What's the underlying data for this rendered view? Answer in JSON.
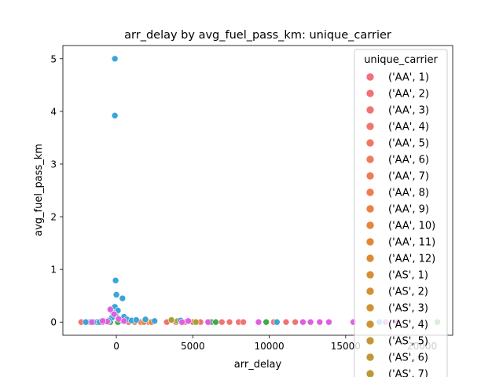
{
  "chart_data": {
    "type": "scatter",
    "title": "arr_delay by avg_fuel_pass_km: unique_carrier",
    "xlabel": "arr_delay",
    "ylabel": "avg_fuel_pass_km",
    "xlim": [
      -3500,
      22000
    ],
    "ylim": [
      -0.25,
      5.25
    ],
    "x_ticks": [
      0,
      5000,
      10000,
      15000,
      20000
    ],
    "x_tick_labels": [
      "0",
      "5000",
      "10000",
      "15000",
      "20000"
    ],
    "y_ticks": [
      0,
      1,
      2,
      3,
      4,
      5
    ],
    "y_tick_labels": [
      "0",
      "1",
      "2",
      "3",
      "4",
      "5"
    ],
    "grid": false,
    "legend": {
      "title": "unique_carrier",
      "placement": "top-right",
      "entries": [
        {
          "label": "('AA', 1)",
          "color": "#f0707c"
        },
        {
          "label": "('AA', 2)",
          "color": "#f07277"
        },
        {
          "label": "('AA', 3)",
          "color": "#f07472"
        },
        {
          "label": "('AA', 4)",
          "color": "#f0766c"
        },
        {
          "label": "('AA', 5)",
          "color": "#f07866"
        },
        {
          "label": "('AA', 6)",
          "color": "#f07a60"
        },
        {
          "label": "('AA', 7)",
          "color": "#ef7c58"
        },
        {
          "label": "('AA', 8)",
          "color": "#ee7e4e"
        },
        {
          "label": "('AA', 9)",
          "color": "#ec8140"
        },
        {
          "label": "('AA', 10)",
          "color": "#e9843a"
        },
        {
          "label": "('AA', 11)",
          "color": "#e38735"
        },
        {
          "label": "('AA', 12)",
          "color": "#de8a32"
        },
        {
          "label": "('AS', 1)",
          "color": "#d98d32"
        },
        {
          "label": "('AS', 2)",
          "color": "#d49033"
        },
        {
          "label": "('AS', 3)",
          "color": "#cf9233"
        },
        {
          "label": "('AS', 4)",
          "color": "#ca9433"
        },
        {
          "label": "('AS', 5)",
          "color": "#c59634"
        },
        {
          "label": "('AS', 6)",
          "color": "#c09835"
        },
        {
          "label": "('AS', 7)",
          "color": "#bb9a36"
        }
      ]
    },
    "series": [
      {
        "color": "#f07472",
        "points": [
          [
            -2300,
            0
          ],
          [
            -1800,
            0
          ],
          [
            -1200,
            0
          ],
          [
            -900,
            0
          ],
          [
            -500,
            0
          ],
          [
            300,
            0.03
          ],
          [
            800,
            0
          ],
          [
            1600,
            0
          ],
          [
            2100,
            0
          ],
          [
            3300,
            0
          ],
          [
            3900,
            0
          ],
          [
            4500,
            0
          ],
          [
            5000,
            0
          ],
          [
            5500,
            0
          ],
          [
            6900,
            0
          ],
          [
            7400,
            0
          ],
          [
            8000,
            0
          ],
          [
            8300,
            0
          ],
          [
            10300,
            0
          ],
          [
            11100,
            0
          ],
          [
            11700,
            0
          ]
        ]
      },
      {
        "color": "#de8a32",
        "points": [
          [
            1200,
            0
          ],
          [
            1800,
            0
          ],
          [
            2300,
            0
          ]
        ]
      },
      {
        "color": "#a9a035",
        "points": [
          [
            3600,
            0.04
          ],
          [
            4000,
            0.02
          ],
          [
            5200,
            0
          ]
        ]
      },
      {
        "color": "#3fab4d",
        "points": [
          [
            -1700,
            0
          ],
          [
            -1300,
            0
          ],
          [
            -400,
            0
          ],
          [
            100,
            0
          ],
          [
            6200,
            0
          ],
          [
            6500,
            0
          ],
          [
            9800,
            0
          ],
          [
            21000,
            0
          ]
        ]
      },
      {
        "color": "#3ba4d9",
        "points": [
          [
            -100,
            5.0
          ],
          [
            -100,
            3.92
          ],
          [
            -50,
            0.79
          ],
          [
            0,
            0.52
          ],
          [
            400,
            0.45
          ],
          [
            -100,
            0.29
          ],
          [
            100,
            0.22
          ],
          [
            -200,
            0.17
          ],
          [
            -50,
            0.12
          ],
          [
            -300,
            0.08
          ],
          [
            200,
            0.06
          ],
          [
            500,
            0.1
          ],
          [
            700,
            0.05
          ],
          [
            -500,
            0.03
          ],
          [
            -800,
            0.02
          ],
          [
            -2000,
            0
          ],
          [
            -1500,
            0
          ],
          [
            -1100,
            0
          ],
          [
            -700,
            0.01
          ],
          [
            1000,
            0.03
          ],
          [
            1300,
            0.04
          ],
          [
            1900,
            0.05
          ],
          [
            2500,
            0.02
          ],
          [
            4200,
            0.03
          ],
          [
            10500,
            0
          ],
          [
            17200,
            0
          ]
        ]
      },
      {
        "color": "#e05ee0",
        "points": [
          [
            -400,
            0.24
          ],
          [
            -150,
            0.15
          ],
          [
            150,
            0.06
          ],
          [
            -600,
            0.01
          ],
          [
            -1600,
            0
          ],
          [
            -900,
            0.02
          ],
          [
            500,
            0.02
          ],
          [
            4300,
            0
          ],
          [
            4700,
            0.02
          ],
          [
            6000,
            0
          ],
          [
            9300,
            0
          ],
          [
            12200,
            0
          ],
          [
            12700,
            0
          ],
          [
            13300,
            0
          ],
          [
            13900,
            0
          ],
          [
            15500,
            0
          ],
          [
            17600,
            0
          ],
          [
            18300,
            0
          ]
        ]
      }
    ]
  }
}
